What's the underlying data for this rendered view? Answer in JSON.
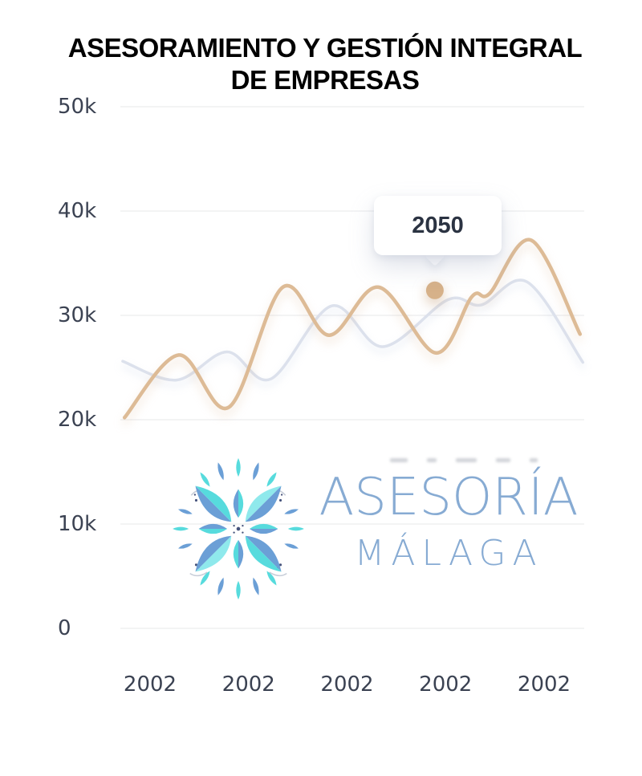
{
  "header": {
    "title_line1": "ASESORAMIENTO Y GESTIÓN INTEGRAL",
    "title_line2": "DE EMPRESAS"
  },
  "chart_data": {
    "type": "line",
    "title": "ASESORAMIENTO Y GESTIÓN INTEGRAL DE EMPRESAS",
    "grid": true,
    "legend": "none",
    "ylim": [
      0,
      50000
    ],
    "yticks": [
      {
        "value": 0,
        "label": "0"
      },
      {
        "value": 10000,
        "label": "10k"
      },
      {
        "value": 20000,
        "label": "20k"
      },
      {
        "value": 30000,
        "label": "30k"
      },
      {
        "value": 40000,
        "label": "40k"
      },
      {
        "value": 50000,
        "label": "50k"
      }
    ],
    "x_categories": [
      "2002",
      "2002",
      "2002",
      "2002",
      "2002"
    ],
    "series": [
      {
        "name": "secondary-line",
        "color": "#dce1ec",
        "points": [
          [
            0.005,
            25600
          ],
          [
            0.121,
            23800
          ],
          [
            0.23,
            26500
          ],
          [
            0.324,
            23900
          ],
          [
            0.455,
            30900
          ],
          [
            0.566,
            27000
          ],
          [
            0.706,
            31500
          ],
          [
            0.778,
            31000
          ],
          [
            0.877,
            33200
          ],
          [
            0.997,
            25500
          ]
        ]
      },
      {
        "name": "primary-line",
        "color": "#ddbb96",
        "points": [
          [
            0.009,
            20200
          ],
          [
            0.126,
            26200
          ],
          [
            0.234,
            21200
          ],
          [
            0.35,
            32700
          ],
          [
            0.45,
            28100
          ],
          [
            0.557,
            32700
          ],
          [
            0.68,
            26400
          ],
          [
            0.758,
            31800
          ],
          [
            0.796,
            32100
          ],
          [
            0.886,
            37200
          ],
          [
            0.991,
            28200
          ]
        ]
      }
    ],
    "highlight": {
      "series": "primary-line",
      "x": 0.678,
      "value": 32400,
      "tooltip_label": "2050",
      "dot_color": "#d6b189"
    }
  },
  "logo": {
    "line1": "ASESORÍA",
    "line2": "MÁLAGA",
    "text_color": "#87abd3"
  },
  "colors": {
    "grid": "#e7e8ea",
    "axis_text": "#3b4252",
    "tooltip_text": "#2b3342",
    "flower_cyan": "#57dbdd",
    "flower_light_cyan": "#8fe9ec",
    "flower_blue": "#6b9fd6",
    "flower_navy": "#45527b",
    "flower_swirl": "#c7cdd8"
  }
}
